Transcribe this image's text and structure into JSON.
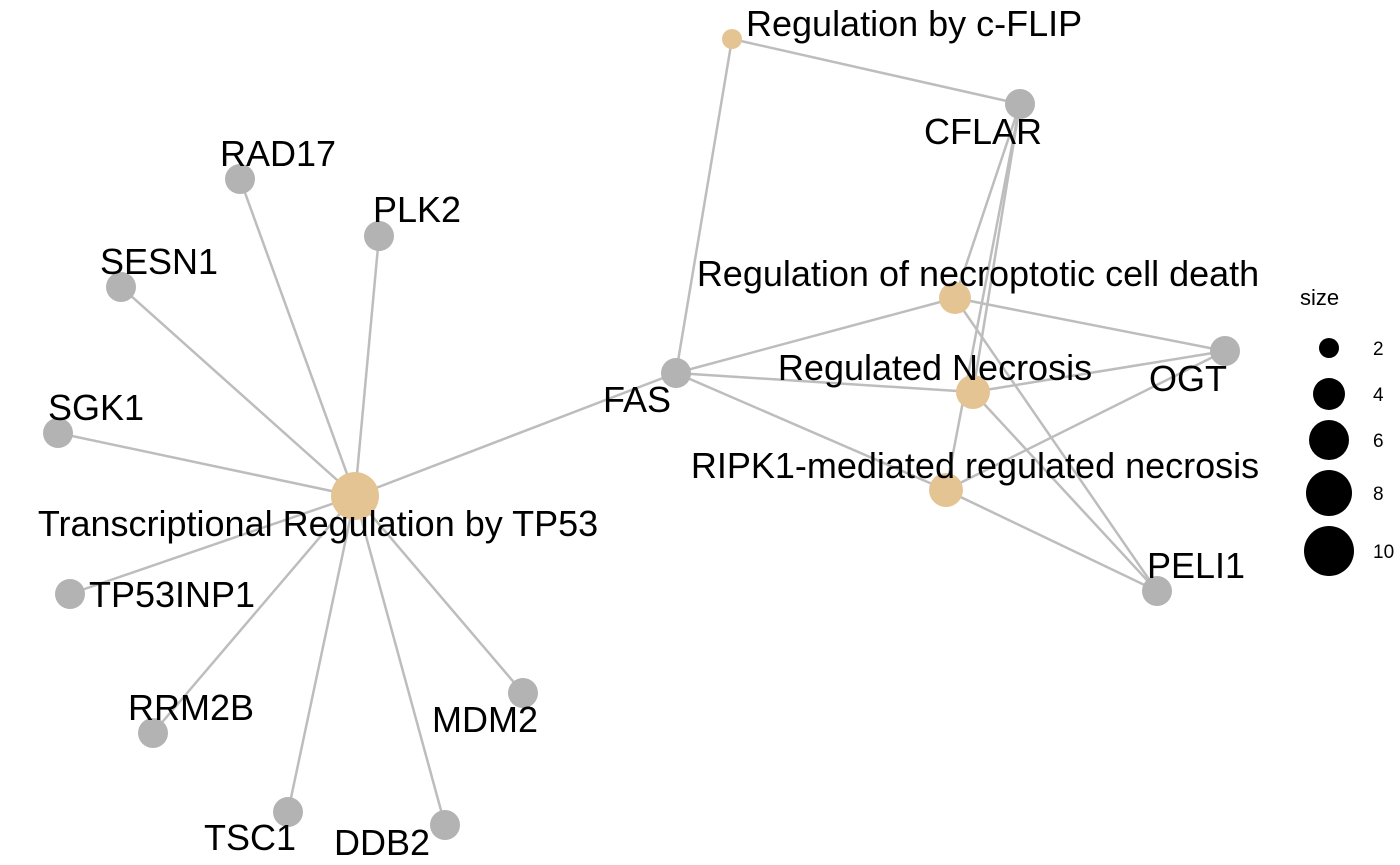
{
  "colors": {
    "gene": "#b3b3b3",
    "pathway": "#e5c494",
    "edge": "#bdbdbd"
  },
  "nodes": [
    {
      "id": "tp53",
      "label": "Transcriptional Regulation by TP53",
      "kind": "pathway",
      "size": 11
    },
    {
      "id": "necroptotic",
      "label": "Regulation of necroptotic cell death",
      "kind": "pathway",
      "size": 4
    },
    {
      "id": "necrosis",
      "label": "Regulated Necrosis",
      "kind": "pathway",
      "size": 5
    },
    {
      "id": "ripk1",
      "label": "RIPK1-mediated regulated necrosis",
      "kind": "pathway",
      "size": 4
    },
    {
      "id": "cflip",
      "label": "Regulation by c-FLIP",
      "kind": "pathway",
      "size": 2
    },
    {
      "id": "rad17",
      "label": "RAD17",
      "kind": "gene"
    },
    {
      "id": "plk2",
      "label": "PLK2",
      "kind": "gene"
    },
    {
      "id": "sesn1",
      "label": "SESN1",
      "kind": "gene"
    },
    {
      "id": "sgk1",
      "label": "SGK1",
      "kind": "gene"
    },
    {
      "id": "tp53inp1",
      "label": "TP53INP1",
      "kind": "gene"
    },
    {
      "id": "rrm2b",
      "label": "RRM2B",
      "kind": "gene"
    },
    {
      "id": "tsc1",
      "label": "TSC1",
      "kind": "gene"
    },
    {
      "id": "ddb2",
      "label": "DDB2",
      "kind": "gene"
    },
    {
      "id": "mdm2",
      "label": "MDM2",
      "kind": "gene"
    },
    {
      "id": "fas",
      "label": "FAS",
      "kind": "gene"
    },
    {
      "id": "cflar",
      "label": "CFLAR",
      "kind": "gene"
    },
    {
      "id": "ogt",
      "label": "OGT",
      "kind": "gene"
    },
    {
      "id": "peli1",
      "label": "PELI1",
      "kind": "gene"
    }
  ],
  "edges": [
    [
      "tp53",
      "rad17"
    ],
    [
      "tp53",
      "plk2"
    ],
    [
      "tp53",
      "sesn1"
    ],
    [
      "tp53",
      "sgk1"
    ],
    [
      "tp53",
      "tp53inp1"
    ],
    [
      "tp53",
      "rrm2b"
    ],
    [
      "tp53",
      "tsc1"
    ],
    [
      "tp53",
      "ddb2"
    ],
    [
      "tp53",
      "mdm2"
    ],
    [
      "tp53",
      "fas"
    ],
    [
      "cflip",
      "fas"
    ],
    [
      "cflip",
      "cflar"
    ],
    [
      "necroptotic",
      "fas"
    ],
    [
      "necroptotic",
      "cflar"
    ],
    [
      "necroptotic",
      "ogt"
    ],
    [
      "necroptotic",
      "peli1"
    ],
    [
      "necrosis",
      "fas"
    ],
    [
      "necrosis",
      "cflar"
    ],
    [
      "necrosis",
      "ogt"
    ],
    [
      "necrosis",
      "peli1"
    ],
    [
      "ripk1",
      "fas"
    ],
    [
      "ripk1",
      "cflar"
    ],
    [
      "ripk1",
      "ogt"
    ],
    [
      "ripk1",
      "peli1"
    ]
  ],
  "legend": {
    "title": "size",
    "items": [
      {
        "size": 2,
        "label": "2"
      },
      {
        "size": 4,
        "label": "4"
      },
      {
        "size": 6,
        "label": "6"
      },
      {
        "size": 8,
        "label": "8"
      },
      {
        "size": 10,
        "label": "10"
      }
    ]
  }
}
